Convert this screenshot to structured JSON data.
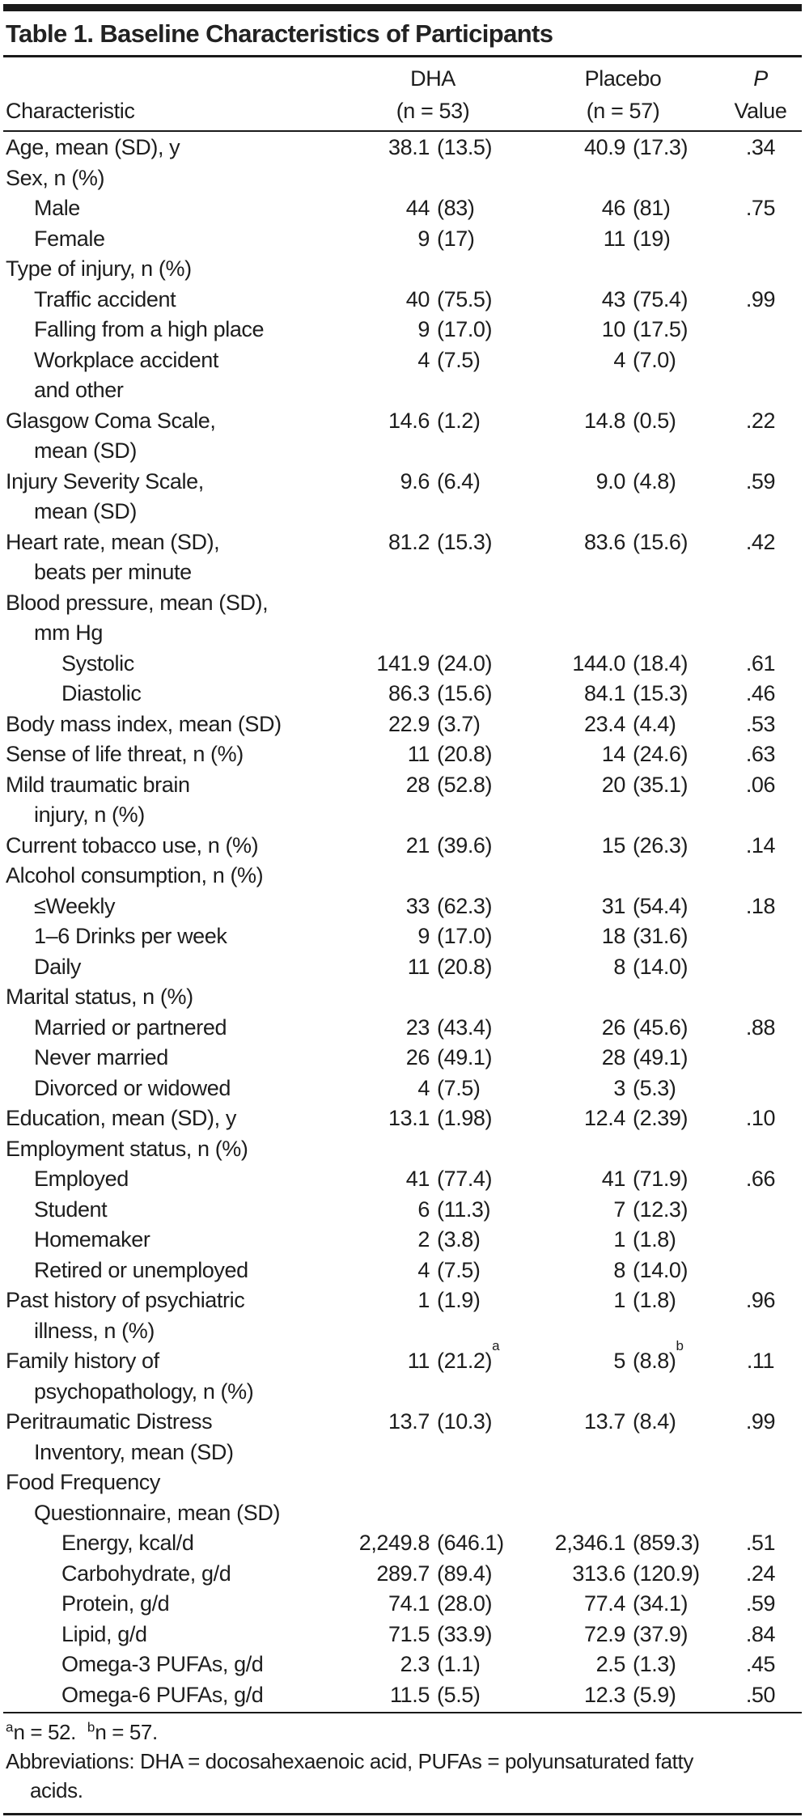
{
  "table": {
    "title": "Table 1. Baseline Characteristics of Participants",
    "columns": {
      "characteristic": "Characteristic",
      "dha_line1": "DHA",
      "dha_line2": "(n = 53)",
      "placebo_line1": "Placebo",
      "placebo_line2": "(n = 57)",
      "p_line1": "P",
      "p_line2": "Value"
    },
    "rows": [
      {
        "label_lines": [
          {
            "text": "Age, mean (SD), y",
            "indent": 0
          }
        ],
        "dha": "38.1 (13.5)",
        "placebo": "40.9 (17.3)",
        "p": ".34"
      },
      {
        "label_lines": [
          {
            "text": "Sex, n (%)",
            "indent": 0
          }
        ],
        "dha": "",
        "placebo": "",
        "p": ""
      },
      {
        "label_lines": [
          {
            "text": "Male",
            "indent": 1
          }
        ],
        "dha": "44 (83)",
        "placebo": "46 (81)",
        "p": ".75"
      },
      {
        "label_lines": [
          {
            "text": "Female",
            "indent": 1
          }
        ],
        "dha": "9 (17)",
        "placebo": "11 (19)",
        "p": ""
      },
      {
        "label_lines": [
          {
            "text": "Type of injury, n (%)",
            "indent": 0
          }
        ],
        "dha": "",
        "placebo": "",
        "p": ""
      },
      {
        "label_lines": [
          {
            "text": "Traffic accident",
            "indent": 1
          }
        ],
        "dha": "40 (75.5)",
        "placebo": "43 (75.4)",
        "p": ".99"
      },
      {
        "label_lines": [
          {
            "text": "Falling from a high place",
            "indent": 1
          }
        ],
        "dha": "9 (17.0)",
        "placebo": "10 (17.5)",
        "p": ""
      },
      {
        "label_lines": [
          {
            "text": "Workplace accident",
            "indent": 1
          },
          {
            "text": "and other",
            "indent": 1
          }
        ],
        "dha": "4 (7.5)",
        "placebo": "4 (7.0)",
        "p": ""
      },
      {
        "label_lines": [
          {
            "text": "Glasgow Coma Scale,",
            "indent": 0
          },
          {
            "text": "mean (SD)",
            "indent": 1
          }
        ],
        "dha": "14.6 (1.2)",
        "placebo": "14.8 (0.5)",
        "p": ".22"
      },
      {
        "label_lines": [
          {
            "text": "Injury Severity Scale,",
            "indent": 0
          },
          {
            "text": "mean (SD)",
            "indent": 1
          }
        ],
        "dha": "9.6 (6.4)",
        "placebo": "9.0 (4.8)",
        "p": ".59"
      },
      {
        "label_lines": [
          {
            "text": "Heart rate, mean (SD),",
            "indent": 0
          },
          {
            "text": "beats per minute",
            "indent": 1
          }
        ],
        "dha": "81.2 (15.3)",
        "placebo": "83.6 (15.6)",
        "p": ".42"
      },
      {
        "label_lines": [
          {
            "text": "Blood pressure, mean (SD),",
            "indent": 0
          },
          {
            "text": "mm Hg",
            "indent": 1
          }
        ],
        "dha": "",
        "placebo": "",
        "p": ""
      },
      {
        "label_lines": [
          {
            "text": "Systolic",
            "indent": 2
          }
        ],
        "dha": "141.9 (24.0)",
        "placebo": "144.0 (18.4)",
        "p": ".61"
      },
      {
        "label_lines": [
          {
            "text": "Diastolic",
            "indent": 2
          }
        ],
        "dha": "86.3 (15.6)",
        "placebo": "84.1 (15.3)",
        "p": ".46"
      },
      {
        "label_lines": [
          {
            "text": "Body mass index, mean (SD)",
            "indent": 0
          }
        ],
        "dha": "22.9 (3.7)",
        "placebo": "23.4 (4.4)",
        "p": ".53"
      },
      {
        "label_lines": [
          {
            "text": "Sense of life threat, n (%)",
            "indent": 0
          }
        ],
        "dha": "11 (20.8)",
        "placebo": "14 (24.6)",
        "p": ".63"
      },
      {
        "label_lines": [
          {
            "text": "Mild traumatic brain",
            "indent": 0
          },
          {
            "text": "injury, n (%)",
            "indent": 1
          }
        ],
        "dha": "28 (52.8)",
        "placebo": "20 (35.1)",
        "p": ".06"
      },
      {
        "label_lines": [
          {
            "text": "Current tobacco use, n (%)",
            "indent": 0
          }
        ],
        "dha": "21 (39.6)",
        "placebo": "15 (26.3)",
        "p": ".14"
      },
      {
        "label_lines": [
          {
            "text": "Alcohol consumption, n (%)",
            "indent": 0
          }
        ],
        "dha": "",
        "placebo": "",
        "p": ""
      },
      {
        "label_lines": [
          {
            "text": "≤Weekly",
            "indent": 1
          }
        ],
        "dha": "33 (62.3)",
        "placebo": "31 (54.4)",
        "p": ".18"
      },
      {
        "label_lines": [
          {
            "text": "1–6 Drinks per week",
            "indent": 1
          }
        ],
        "dha": "9 (17.0)",
        "placebo": "18 (31.6)",
        "p": ""
      },
      {
        "label_lines": [
          {
            "text": "Daily",
            "indent": 1
          }
        ],
        "dha": "11 (20.8)",
        "placebo": "8 (14.0)",
        "p": ""
      },
      {
        "label_lines": [
          {
            "text": "Marital status, n (%)",
            "indent": 0
          }
        ],
        "dha": "",
        "placebo": "",
        "p": ""
      },
      {
        "label_lines": [
          {
            "text": "Married or partnered",
            "indent": 1
          }
        ],
        "dha": "23 (43.4)",
        "placebo": "26 (45.6)",
        "p": ".88"
      },
      {
        "label_lines": [
          {
            "text": "Never married",
            "indent": 1
          }
        ],
        "dha": "26 (49.1)",
        "placebo": "28 (49.1)",
        "p": ""
      },
      {
        "label_lines": [
          {
            "text": "Divorced or widowed",
            "indent": 1
          }
        ],
        "dha": "4 (7.5)",
        "placebo": "3 (5.3)",
        "p": ""
      },
      {
        "label_lines": [
          {
            "text": "Education, mean (SD), y",
            "indent": 0
          }
        ],
        "dha": "13.1 (1.98)",
        "placebo": "12.4 (2.39)",
        "p": ".10"
      },
      {
        "label_lines": [
          {
            "text": "Employment status, n (%)",
            "indent": 0
          }
        ],
        "dha": "",
        "placebo": "",
        "p": ""
      },
      {
        "label_lines": [
          {
            "text": "Employed",
            "indent": 1
          }
        ],
        "dha": "41 (77.4)",
        "placebo": "41 (71.9)",
        "p": ".66"
      },
      {
        "label_lines": [
          {
            "text": "Student",
            "indent": 1
          }
        ],
        "dha": "6 (11.3)",
        "placebo": "7 (12.3)",
        "p": ""
      },
      {
        "label_lines": [
          {
            "text": "Homemaker",
            "indent": 1
          }
        ],
        "dha": "2 (3.8)",
        "placebo": "1 (1.8)",
        "p": ""
      },
      {
        "label_lines": [
          {
            "text": "Retired or unemployed",
            "indent": 1
          }
        ],
        "dha": "4 (7.5)",
        "placebo": "8 (14.0)",
        "p": ""
      },
      {
        "label_lines": [
          {
            "text": "Past history of psychiatric",
            "indent": 0
          },
          {
            "text": "illness, n (%)",
            "indent": 1
          }
        ],
        "dha": "1 (1.9)",
        "placebo": "1 (1.8)",
        "p": ".96"
      },
      {
        "label_lines": [
          {
            "text": "Family history of",
            "indent": 0
          },
          {
            "text": "psychopathology, n (%)",
            "indent": 1
          }
        ],
        "dha": "11 (21.2)",
        "dha_sup": "a",
        "placebo": "5 (8.8)",
        "placebo_sup": "b",
        "p": ".11"
      },
      {
        "label_lines": [
          {
            "text": "Peritraumatic Distress",
            "indent": 0
          },
          {
            "text": "Inventory, mean (SD)",
            "indent": 1
          }
        ],
        "dha": "13.7 (10.3)",
        "placebo": "13.7 (8.4)",
        "p": ".99"
      },
      {
        "label_lines": [
          {
            "text": "Food Frequency",
            "indent": 0
          },
          {
            "text": "Questionnaire, mean (SD)",
            "indent": 1
          }
        ],
        "dha": "",
        "placebo": "",
        "p": ""
      },
      {
        "label_lines": [
          {
            "text": "Energy, kcal/d",
            "indent": 2
          }
        ],
        "dha": "2,249.8 (646.1)",
        "placebo": "2,346.1 (859.3)",
        "p": ".51"
      },
      {
        "label_lines": [
          {
            "text": "Carbohydrate, g/d",
            "indent": 2
          }
        ],
        "dha": "289.7 (89.4)",
        "placebo": "313.6 (120.9)",
        "p": ".24"
      },
      {
        "label_lines": [
          {
            "text": "Protein, g/d",
            "indent": 2
          }
        ],
        "dha": "74.1 (28.0)",
        "placebo": "77.4 (34.1)",
        "p": ".59"
      },
      {
        "label_lines": [
          {
            "text": "Lipid, g/d",
            "indent": 2
          }
        ],
        "dha": "71.5 (33.9)",
        "placebo": "72.9 (37.9)",
        "p": ".84"
      },
      {
        "label_lines": [
          {
            "text": "Omega-3 PUFAs, g/d",
            "indent": 2
          }
        ],
        "dha": "2.3 (1.1)",
        "placebo": "2.5 (1.3)",
        "p": ".45"
      },
      {
        "label_lines": [
          {
            "text": "Omega-6 PUFAs, g/d",
            "indent": 2
          }
        ],
        "dha": "11.5 (5.5)",
        "placebo": "12.3 (5.9)",
        "p": ".50"
      }
    ],
    "footnotes": [
      {
        "sup": "a",
        "text": "n = 52."
      },
      {
        "sup": "b",
        "text": "n = 57."
      }
    ],
    "abbrev_lines": [
      "Abbreviations: DHA = docosahexaenoic acid, PUFAs = polyunsaturated fatty",
      "acids."
    ]
  },
  "colors": {
    "text": "#1d1d1d",
    "rule": "#1a1a1a",
    "background": "#ffffff"
  }
}
